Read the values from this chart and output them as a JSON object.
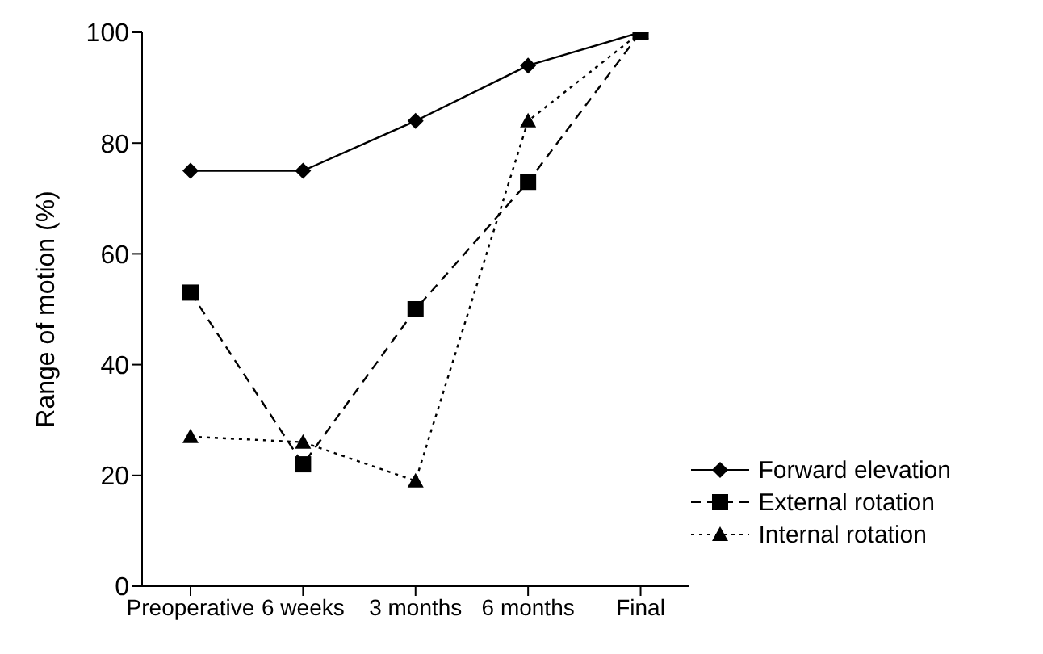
{
  "chart_data": {
    "type": "line",
    "ylabel": "Range of motion (%)",
    "categories": [
      "Preoperative",
      "6 weeks",
      "3 months",
      "6 months",
      "Final"
    ],
    "ylim": [
      0,
      100
    ],
    "yticks": [
      0,
      20,
      40,
      60,
      80,
      100
    ],
    "grid": false,
    "legend": "bottom right",
    "series": [
      {
        "name": "Forward elevation",
        "color": "#000000",
        "marker": "diamond",
        "line_style": "solid",
        "values": [
          75,
          75,
          84,
          94,
          100
        ]
      },
      {
        "name": "External rotation",
        "color": "#000000",
        "marker": "square",
        "line_style": "dashed",
        "values": [
          53,
          22,
          50,
          73,
          100
        ]
      },
      {
        "name": "Internal rotation",
        "color": "#000000",
        "marker": "triangle",
        "line_style": "dotted",
        "values": [
          27,
          26,
          19,
          84,
          100
        ]
      }
    ]
  }
}
